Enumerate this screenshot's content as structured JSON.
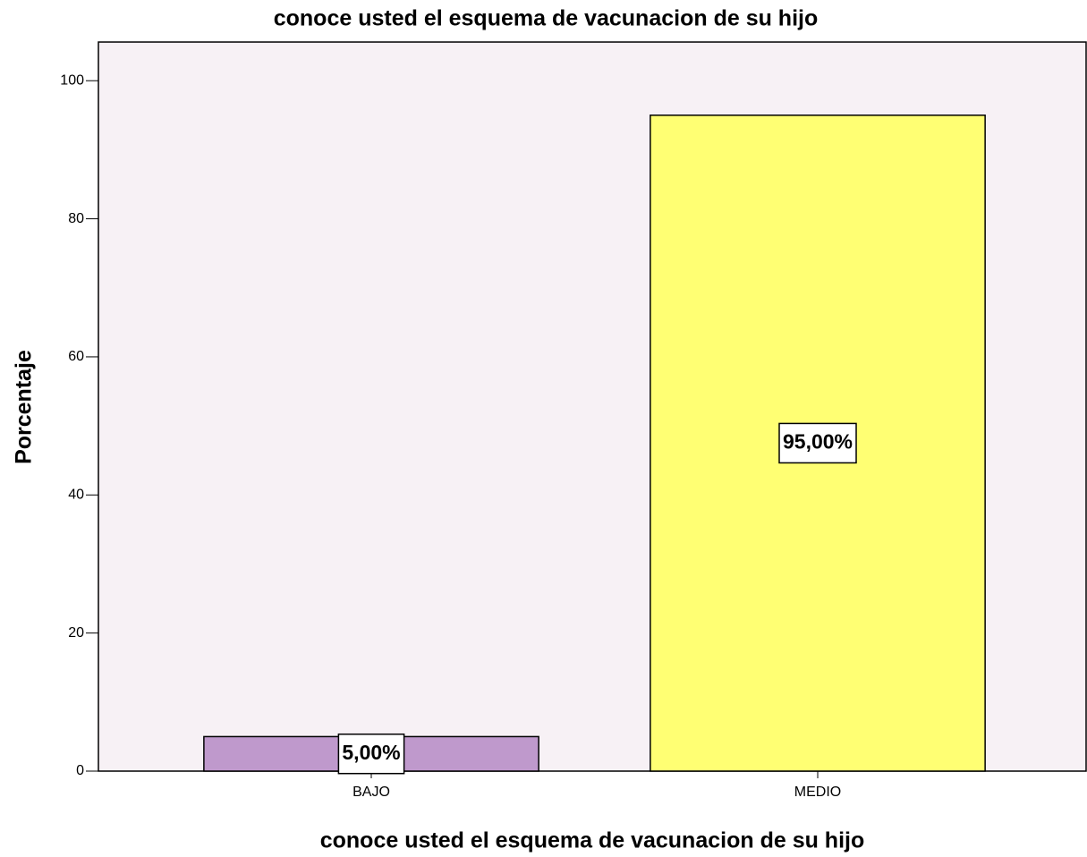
{
  "chart_data": {
    "type": "bar",
    "title": "conoce usted el esquema de vacunacion de su hijo",
    "x_label": "conoce usted el esquema de vacunacion de su hijo",
    "y_label": "Porcentaje",
    "categories": [
      "BAJO",
      "MEDIO"
    ],
    "values": [
      5,
      95
    ],
    "value_labels": [
      "5,00%",
      "95,00%"
    ],
    "colors": [
      "#bf99cc",
      "#ffff73"
    ],
    "ylim": [
      0,
      105.6
    ],
    "yticks": [
      0,
      20,
      40,
      60,
      80,
      100
    ],
    "grid": false
  }
}
